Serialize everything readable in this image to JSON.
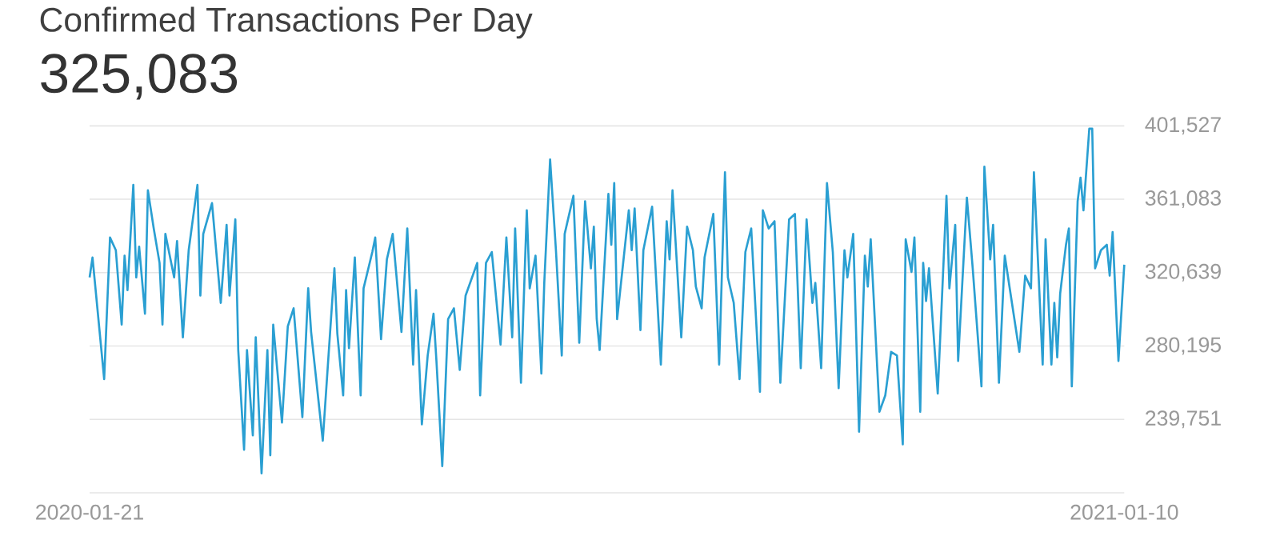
{
  "chart_data": {
    "type": "line",
    "title": "Confirmed Transactions Per Day",
    "subtitle": "325,083",
    "color": "#2a9fd2",
    "marker": "none",
    "line_style": "solid",
    "grid": "y",
    "xlim": [
      "2020-01-21",
      "2021-01-10"
    ],
    "xticks": [
      {
        "value": "2020-01-21",
        "label": "2020-01-21"
      },
      {
        "value": "2021-01-10",
        "label": "2021-01-10"
      }
    ],
    "ylim": [
      199307,
      401527
    ],
    "yticks": [
      {
        "value": 199307,
        "label": null
      },
      {
        "value": 239751,
        "label": "239,751"
      },
      {
        "value": 280195,
        "label": "280,195"
      },
      {
        "value": 320639,
        "label": "320,639"
      },
      {
        "value": 361083,
        "label": "361,083"
      },
      {
        "value": 401527,
        "label": "401,527"
      }
    ],
    "x": [
      "2020-01-21",
      "2020-01-22",
      "2020-01-26",
      "2020-01-28",
      "2020-01-30",
      "2020-02-01",
      "2020-02-02",
      "2020-02-03",
      "2020-02-05",
      "2020-02-06",
      "2020-02-07",
      "2020-02-09",
      "2020-02-10",
      "2020-02-12",
      "2020-02-14",
      "2020-02-15",
      "2020-02-16",
      "2020-02-19",
      "2020-02-20",
      "2020-02-22",
      "2020-02-24",
      "2020-02-27",
      "2020-02-28",
      "2020-02-29",
      "2020-03-03",
      "2020-03-06",
      "2020-03-08",
      "2020-03-09",
      "2020-03-11",
      "2020-03-12",
      "2020-03-14",
      "2020-03-15",
      "2020-03-17",
      "2020-03-18",
      "2020-03-20",
      "2020-03-22",
      "2020-03-23",
      "2020-03-24",
      "2020-03-27",
      "2020-03-29",
      "2020-03-31",
      "2020-04-03",
      "2020-04-05",
      "2020-04-06",
      "2020-04-10",
      "2020-04-14",
      "2020-04-15",
      "2020-04-17",
      "2020-04-18",
      "2020-04-19",
      "2020-04-21",
      "2020-04-23",
      "2020-04-24",
      "2020-04-27",
      "2020-04-28",
      "2020-04-30",
      "2020-05-02",
      "2020-05-04",
      "2020-05-07",
      "2020-05-09",
      "2020-05-11",
      "2020-05-12",
      "2020-05-14",
      "2020-05-16",
      "2020-05-18",
      "2020-05-19",
      "2020-05-21",
      "2020-05-23",
      "2020-05-25",
      "2020-05-27",
      "2020-05-29",
      "2020-06-02",
      "2020-06-03",
      "2020-06-05",
      "2020-06-07",
      "2020-06-10",
      "2020-06-12",
      "2020-06-14",
      "2020-06-15",
      "2020-06-17",
      "2020-06-19",
      "2020-06-20",
      "2020-06-22",
      "2020-06-24",
      "2020-06-25",
      "2020-06-27",
      "2020-06-29",
      "2020-07-01",
      "2020-07-02",
      "2020-07-05",
      "2020-07-07",
      "2020-07-09",
      "2020-07-11",
      "2020-07-12",
      "2020-07-13",
      "2020-07-14",
      "2020-07-17",
      "2020-07-18",
      "2020-07-19",
      "2020-07-20",
      "2020-07-24",
      "2020-07-25",
      "2020-07-26",
      "2020-07-28",
      "2020-07-29",
      "2020-08-01",
      "2020-08-04",
      "2020-08-06",
      "2020-08-07",
      "2020-08-08",
      "2020-08-11",
      "2020-08-13",
      "2020-08-15",
      "2020-08-16",
      "2020-08-18",
      "2020-08-19",
      "2020-08-22",
      "2020-08-24",
      "2020-08-26",
      "2020-08-27",
      "2020-08-29",
      "2020-08-31",
      "2020-09-02",
      "2020-09-04",
      "2020-09-07",
      "2020-09-08",
      "2020-09-10",
      "2020-09-12",
      "2020-09-14",
      "2020-09-17",
      "2020-09-19",
      "2020-09-21",
      "2020-09-23",
      "2020-09-25",
      "2020-09-26",
      "2020-09-28",
      "2020-09-30",
      "2020-10-02",
      "2020-10-04",
      "2020-10-06",
      "2020-10-07",
      "2020-10-09",
      "2020-10-11",
      "2020-10-13",
      "2020-10-14",
      "2020-10-15",
      "2020-10-18",
      "2020-10-20",
      "2020-10-22",
      "2020-10-24",
      "2020-10-26",
      "2020-10-27",
      "2020-10-29",
      "2020-10-30",
      "2020-11-01",
      "2020-11-02",
      "2020-11-03",
      "2020-11-04",
      "2020-11-07",
      "2020-11-10",
      "2020-11-11",
      "2020-11-13",
      "2020-11-14",
      "2020-11-17",
      "2020-11-19",
      "2020-11-22",
      "2020-11-23",
      "2020-11-25",
      "2020-11-26",
      "2020-11-28",
      "2020-11-30",
      "2020-12-05",
      "2020-12-07",
      "2020-12-09",
      "2020-12-10",
      "2020-12-13",
      "2020-12-14",
      "2020-12-16",
      "2020-12-17",
      "2020-12-18",
      "2020-12-19",
      "2020-12-21",
      "2020-12-22",
      "2020-12-23",
      "2020-12-25",
      "2020-12-26",
      "2020-12-27",
      "2020-12-29",
      "2020-12-30",
      "2020-12-31",
      "2021-01-02",
      "2021-01-04",
      "2021-01-05",
      "2021-01-06",
      "2021-01-08",
      "2021-01-10"
    ],
    "values": [
      318000,
      329000,
      262000,
      340000,
      333000,
      292000,
      330000,
      311000,
      369000,
      318000,
      335000,
      298000,
      366000,
      345000,
      326000,
      292000,
      342000,
      318000,
      338000,
      285000,
      333000,
      369000,
      308000,
      342000,
      359000,
      304000,
      347000,
      308000,
      350000,
      278000,
      223000,
      278000,
      231000,
      285000,
      210000,
      278000,
      220000,
      292000,
      238000,
      291000,
      301000,
      241000,
      312000,
      288000,
      228000,
      323000,
      287000,
      253000,
      311000,
      279000,
      329000,
      253000,
      312000,
      332000,
      340000,
      284000,
      328000,
      342000,
      288000,
      345000,
      270000,
      311000,
      237000,
      275000,
      298000,
      272000,
      214000,
      295000,
      301000,
      267000,
      308000,
      326000,
      253000,
      326000,
      332000,
      281000,
      340000,
      285000,
      345000,
      260000,
      355000,
      312000,
      330000,
      265000,
      315000,
      383000,
      333000,
      275000,
      342000,
      363000,
      282000,
      360000,
      323000,
      346000,
      295000,
      278000,
      364000,
      336000,
      370000,
      295000,
      355000,
      333000,
      356000,
      289000,
      333000,
      357000,
      270000,
      349000,
      328000,
      366000,
      285000,
      346000,
      333000,
      313000,
      301000,
      329000,
      353000,
      270000,
      376000,
      318000,
      304000,
      262000,
      332000,
      345000,
      255000,
      355000,
      345000,
      349000,
      260000,
      350000,
      353000,
      268000,
      350000,
      304000,
      315000,
      268000,
      370000,
      332000,
      257000,
      333000,
      318000,
      342000,
      233000,
      330000,
      313000,
      339000,
      244000,
      253000,
      277000,
      275000,
      226000,
      339000,
      321000,
      340000,
      244000,
      326000,
      305000,
      323000,
      254000,
      363000,
      312000,
      347000,
      272000,
      362000,
      323000,
      258000,
      379000,
      328000,
      347000,
      260000,
      330000,
      277000,
      319000,
      312000,
      376000,
      270000,
      339000,
      270000,
      304000,
      274000,
      309000,
      336000,
      345000,
      258000,
      360000,
      373000,
      355000,
      400000,
      400000,
      323000,
      333000,
      336000,
      319000,
      343000,
      272000,
      325000
    ]
  }
}
